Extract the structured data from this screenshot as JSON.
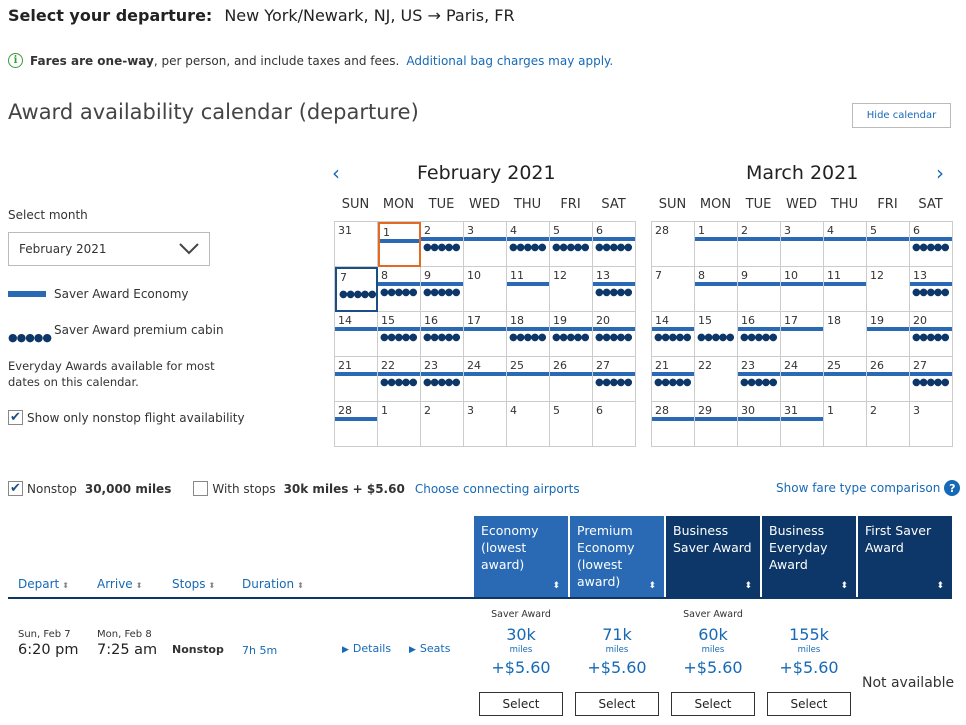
{
  "header": {
    "title_prefix": "Select your departure:",
    "route": "New York/Newark, NJ, US → Paris, FR"
  },
  "info": {
    "text_bold": "Fares are one-way",
    "text_rest": ", per person, and include taxes and fees.",
    "link": "Additional bag charges may apply."
  },
  "calendar_section": {
    "title": "Award availability calendar (departure)",
    "hide_button": "Hide calendar",
    "select_month_label": "Select month",
    "selected_month": "February 2021",
    "legend_economy": "Saver Award Economy",
    "legend_premium": "Saver Award premium cabin",
    "everyday_note": "Everyday Awards available for most dates on this calendar.",
    "nonstop_only_label": "Show only nonstop flight availability",
    "nonstop_only_checked": true
  },
  "weekdays": [
    "SUN",
    "MON",
    "TUE",
    "WED",
    "THU",
    "FRI",
    "SAT"
  ],
  "months": [
    {
      "name": "February 2021",
      "weeks": [
        [
          {
            "d": "31",
            "bar": false,
            "dots": false
          },
          {
            "d": "1",
            "bar": true,
            "dots": false,
            "today": true
          },
          {
            "d": "2",
            "bar": true,
            "dots": true
          },
          {
            "d": "3",
            "bar": true,
            "dots": false
          },
          {
            "d": "4",
            "bar": true,
            "dots": true
          },
          {
            "d": "5",
            "bar": true,
            "dots": true
          },
          {
            "d": "6",
            "bar": true,
            "dots": true
          }
        ],
        [
          {
            "d": "7",
            "bar": false,
            "dots": true,
            "selected": true
          },
          {
            "d": "8",
            "bar": true,
            "dots": true
          },
          {
            "d": "9",
            "bar": true,
            "dots": true
          },
          {
            "d": "10",
            "bar": false,
            "dots": false
          },
          {
            "d": "11",
            "bar": true,
            "dots": false
          },
          {
            "d": "12",
            "bar": false,
            "dots": false
          },
          {
            "d": "13",
            "bar": true,
            "dots": true
          }
        ],
        [
          {
            "d": "14",
            "bar": true,
            "dots": false
          },
          {
            "d": "15",
            "bar": true,
            "dots": true
          },
          {
            "d": "16",
            "bar": true,
            "dots": true
          },
          {
            "d": "17",
            "bar": true,
            "dots": false
          },
          {
            "d": "18",
            "bar": true,
            "dots": true
          },
          {
            "d": "19",
            "bar": true,
            "dots": true
          },
          {
            "d": "20",
            "bar": true,
            "dots": true
          }
        ],
        [
          {
            "d": "21",
            "bar": true,
            "dots": false
          },
          {
            "d": "22",
            "bar": true,
            "dots": true
          },
          {
            "d": "23",
            "bar": true,
            "dots": true
          },
          {
            "d": "24",
            "bar": true,
            "dots": false
          },
          {
            "d": "25",
            "bar": true,
            "dots": false
          },
          {
            "d": "26",
            "bar": true,
            "dots": false
          },
          {
            "d": "27",
            "bar": true,
            "dots": true
          }
        ],
        [
          {
            "d": "28",
            "bar": true,
            "dots": false
          },
          {
            "d": "1",
            "bar": false,
            "dots": false
          },
          {
            "d": "2",
            "bar": false,
            "dots": false
          },
          {
            "d": "3",
            "bar": false,
            "dots": false
          },
          {
            "d": "4",
            "bar": false,
            "dots": false
          },
          {
            "d": "5",
            "bar": false,
            "dots": false
          },
          {
            "d": "6",
            "bar": false,
            "dots": false
          }
        ]
      ]
    },
    {
      "name": "March 2021",
      "weeks": [
        [
          {
            "d": "28",
            "bar": false,
            "dots": false
          },
          {
            "d": "1",
            "bar": true,
            "dots": false
          },
          {
            "d": "2",
            "bar": true,
            "dots": false
          },
          {
            "d": "3",
            "bar": true,
            "dots": false
          },
          {
            "d": "4",
            "bar": true,
            "dots": false
          },
          {
            "d": "5",
            "bar": true,
            "dots": false
          },
          {
            "d": "6",
            "bar": true,
            "dots": true
          }
        ],
        [
          {
            "d": "7",
            "bar": false,
            "dots": false
          },
          {
            "d": "8",
            "bar": true,
            "dots": false
          },
          {
            "d": "9",
            "bar": true,
            "dots": false
          },
          {
            "d": "10",
            "bar": true,
            "dots": false
          },
          {
            "d": "11",
            "bar": true,
            "dots": false
          },
          {
            "d": "12",
            "bar": false,
            "dots": false
          },
          {
            "d": "13",
            "bar": true,
            "dots": true
          }
        ],
        [
          {
            "d": "14",
            "bar": true,
            "dots": true
          },
          {
            "d": "15",
            "bar": false,
            "dots": true
          },
          {
            "d": "16",
            "bar": true,
            "dots": true
          },
          {
            "d": "17",
            "bar": true,
            "dots": false
          },
          {
            "d": "18",
            "bar": false,
            "dots": false
          },
          {
            "d": "19",
            "bar": true,
            "dots": false
          },
          {
            "d": "20",
            "bar": true,
            "dots": true
          }
        ],
        [
          {
            "d": "21",
            "bar": true,
            "dots": true
          },
          {
            "d": "22",
            "bar": false,
            "dots": false
          },
          {
            "d": "23",
            "bar": true,
            "dots": true
          },
          {
            "d": "24",
            "bar": true,
            "dots": false
          },
          {
            "d": "25",
            "bar": true,
            "dots": false
          },
          {
            "d": "26",
            "bar": true,
            "dots": false
          },
          {
            "d": "27",
            "bar": true,
            "dots": true
          }
        ],
        [
          {
            "d": "28",
            "bar": true,
            "dots": false
          },
          {
            "d": "29",
            "bar": true,
            "dots": false
          },
          {
            "d": "30",
            "bar": true,
            "dots": false
          },
          {
            "d": "31",
            "bar": true,
            "dots": false
          },
          {
            "d": "1",
            "bar": false,
            "dots": false
          },
          {
            "d": "2",
            "bar": false,
            "dots": false
          },
          {
            "d": "3",
            "bar": false,
            "dots": false
          }
        ]
      ]
    }
  ],
  "filters": {
    "nonstop_label": "Nonstop",
    "nonstop_checked": true,
    "nonstop_miles": "30,000 miles",
    "stops_label": "With stops",
    "stops_checked": false,
    "stops_price": "30k miles + $5.60",
    "connecting_link": "Choose connecting airports",
    "fare_comparison": "Show fare type comparison",
    "help": "?"
  },
  "columns": {
    "depart": "Depart",
    "arrive": "Arrive",
    "stops": "Stops",
    "duration": "Duration",
    "cabins": [
      "Economy (lowest award)",
      "Premium Economy (lowest award)",
      "Business Saver Award",
      "Business Everyday Award",
      "First Saver Award"
    ],
    "sort_glyph": "⬍"
  },
  "flight": {
    "depart_date": "Sun, Feb 7",
    "depart_time": "6:20 pm",
    "arrive_date": "Mon, Feb 8",
    "arrive_time": "7:25 am",
    "stops": "Nonstop",
    "duration": "7h 5m",
    "details": "Details",
    "seats": "Seats",
    "fares": [
      {
        "type": "Saver Award",
        "miles": "30k",
        "unit": "miles",
        "tax": "+$5.60",
        "button": "Select"
      },
      {
        "type": "",
        "miles": "71k",
        "unit": "miles",
        "tax": "+$5.60",
        "button": "Select"
      },
      {
        "type": "Saver Award",
        "miles": "60k",
        "unit": "miles",
        "tax": "+$5.60",
        "button": "Select"
      },
      {
        "type": "",
        "miles": "155k",
        "unit": "miles",
        "tax": "+$5.60",
        "button": "Select"
      }
    ],
    "first_status": "Not available"
  },
  "colors": {
    "accent": "#1769b6",
    "bar": "#2a6ab4",
    "dark": "#0d3768",
    "today": "#e26a22"
  }
}
